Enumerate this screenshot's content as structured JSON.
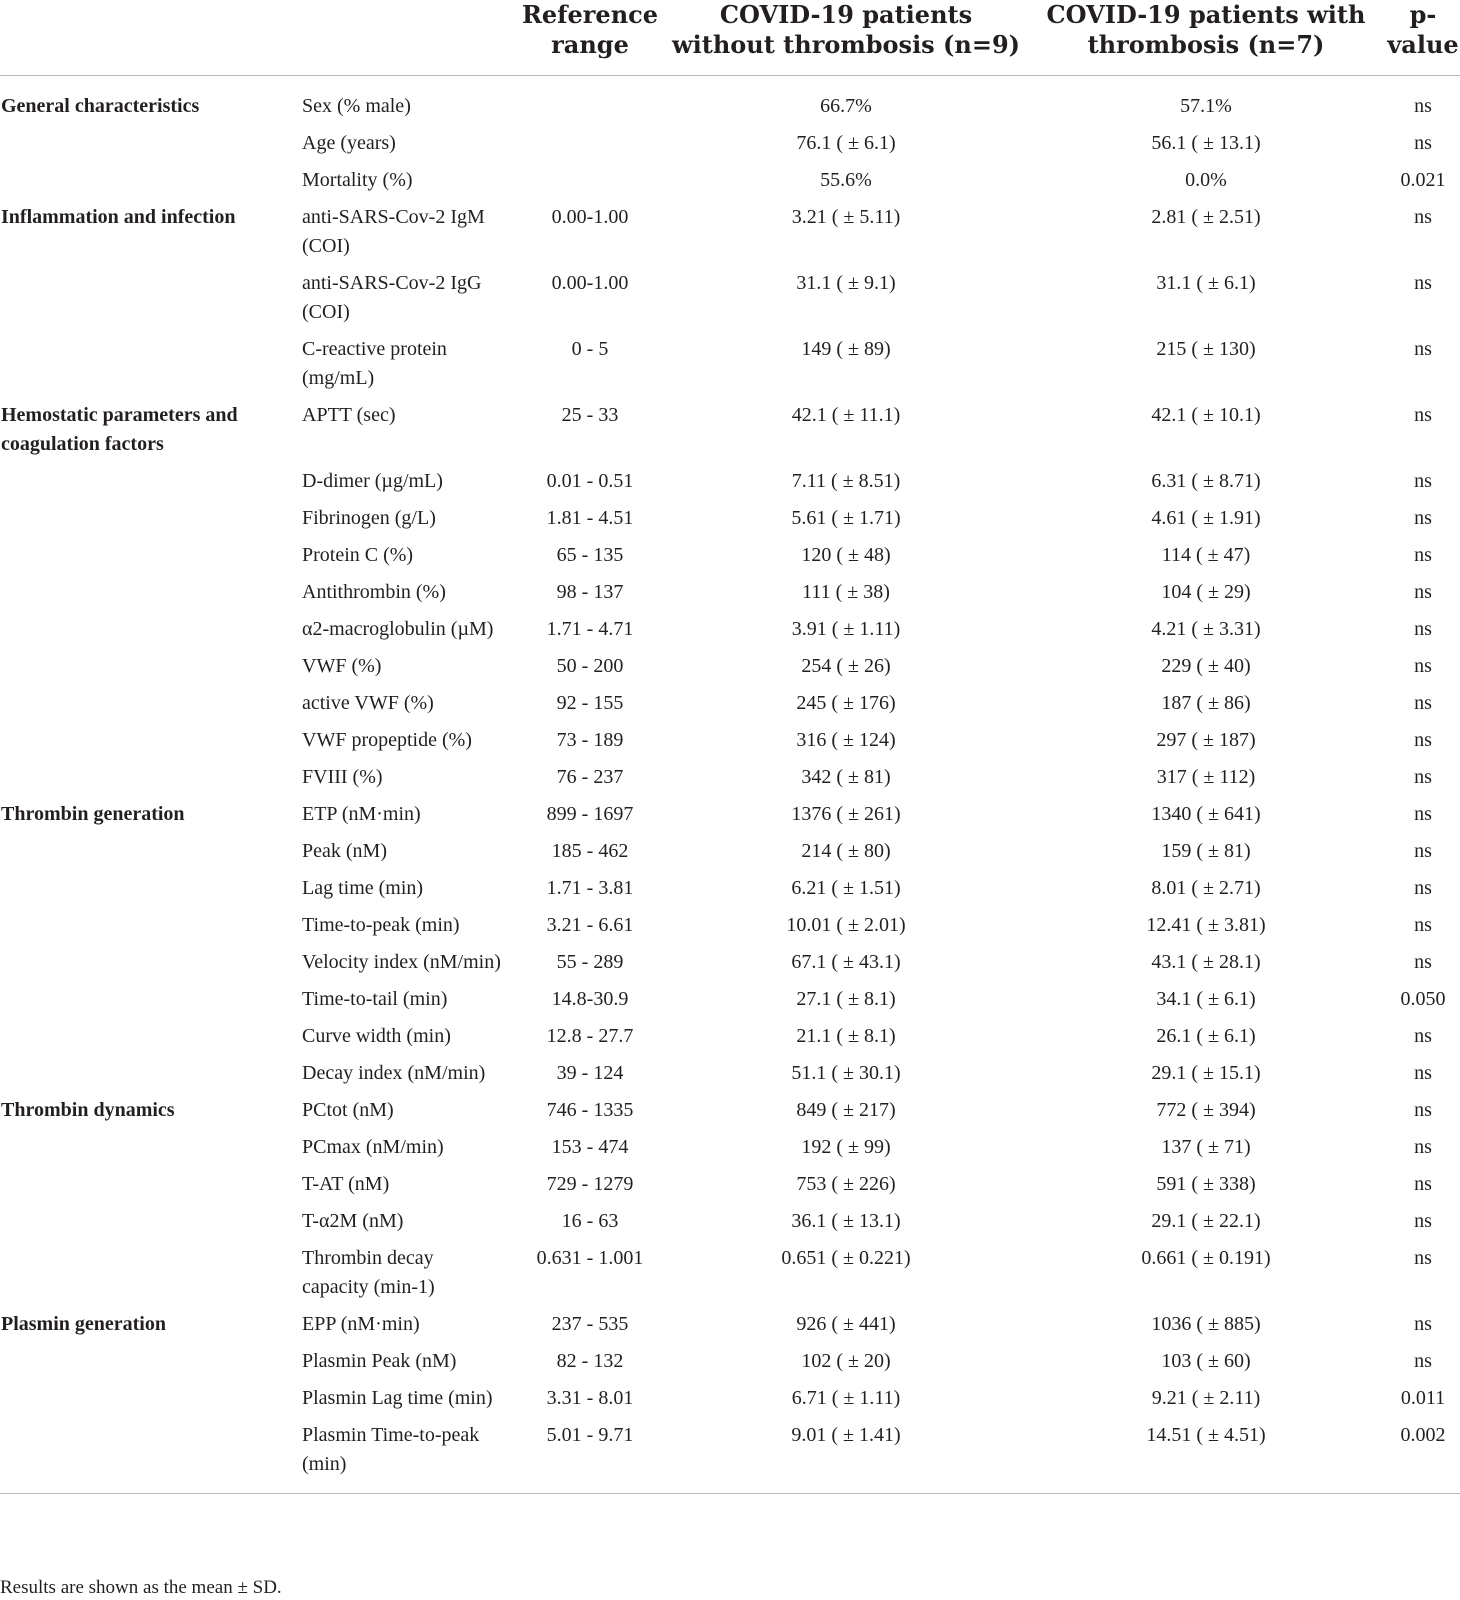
{
  "header": {
    "col_category": "",
    "col_parameter": "",
    "col_reference": "Reference range",
    "col_without": "COVID-19 patients without thrombosis (n=9)",
    "col_with": "COVID-19 patients with thrombosis (n=7)",
    "col_pvalue": "p-value"
  },
  "rows": [
    {
      "category": "General characteristics",
      "parameter": "Sex (% male)",
      "reference": "",
      "without": "66.7%",
      "with": "57.1%",
      "p": "ns"
    },
    {
      "category": "",
      "parameter": "Age (years)",
      "reference": "",
      "without": "76.1 ( ± 6.1)",
      "with": "56.1 ( ± 13.1)",
      "p": "ns"
    },
    {
      "category": "",
      "parameter": "Mortality (%)",
      "reference": "",
      "without": "55.6%",
      "with": "0.0%",
      "p": "0.021"
    },
    {
      "category": "Inflammation and infection",
      "parameter": "anti-SARS-Cov-2 IgM (COI)",
      "reference": "0.00-1.00",
      "without": "3.21 ( ± 5.11)",
      "with": "2.81 ( ± 2.51)",
      "p": "ns"
    },
    {
      "category": "",
      "parameter": "anti-SARS-Cov-2 IgG (COI)",
      "reference": "0.00-1.00",
      "without": "31.1 ( ± 9.1)",
      "with": "31.1 ( ± 6.1)",
      "p": "ns"
    },
    {
      "category": "",
      "parameter": "C-reactive protein (mg/mL)",
      "reference": "0 - 5",
      "without": "149 ( ± 89)",
      "with": "215 ( ± 130)",
      "p": "ns"
    },
    {
      "category": "Hemostatic parameters and coagulation factors",
      "parameter": "APTT (sec)",
      "reference": "25 - 33",
      "without": "42.1 ( ± 11.1)",
      "with": "42.1 ( ± 10.1)",
      "p": "ns"
    },
    {
      "category": "",
      "parameter": "D-dimer (µg/mL)",
      "reference": "0.01 - 0.51",
      "without": "7.11 ( ± 8.51)",
      "with": "6.31 ( ± 8.71)",
      "p": "ns"
    },
    {
      "category": "",
      "parameter": "Fibrinogen (g/L)",
      "reference": "1.81 - 4.51",
      "without": "5.61 ( ± 1.71)",
      "with": "4.61 ( ± 1.91)",
      "p": "ns"
    },
    {
      "category": "",
      "parameter": "Protein C (%)",
      "reference": "65 - 135",
      "without": "120 ( ± 48)",
      "with": "114 ( ± 47)",
      "p": "ns"
    },
    {
      "category": "",
      "parameter": "Antithrombin (%)",
      "reference": "98 - 137",
      "without": "111 ( ± 38)",
      "with": "104 ( ± 29)",
      "p": "ns"
    },
    {
      "category": "",
      "parameter": "α2-macroglobulin (µM)",
      "reference": "1.71 - 4.71",
      "without": "3.91 ( ± 1.11)",
      "with": "4.21 ( ± 3.31)",
      "p": "ns"
    },
    {
      "category": "",
      "parameter": "VWF (%)",
      "reference": "50 - 200",
      "without": "254 ( ± 26)",
      "with": "229 ( ± 40)",
      "p": "ns"
    },
    {
      "category": "",
      "parameter": "active VWF (%)",
      "reference": "92 - 155",
      "without": "245 ( ± 176)",
      "with": "187 ( ± 86)",
      "p": "ns"
    },
    {
      "category": "",
      "parameter": "VWF propeptide (%)",
      "reference": "73 - 189",
      "without": "316 ( ± 124)",
      "with": "297 ( ± 187)",
      "p": "ns"
    },
    {
      "category": "",
      "parameter": "FVIII (%)",
      "reference": "76 - 237",
      "without": "342 ( ± 81)",
      "with": "317 ( ± 112)",
      "p": "ns"
    },
    {
      "category": "Thrombin generation",
      "parameter": "ETP (nM·min)",
      "reference": "899 - 1697",
      "without": "1376 ( ± 261)",
      "with": "1340 ( ± 641)",
      "p": "ns"
    },
    {
      "category": "",
      "parameter": "Peak (nM)",
      "reference": "185 - 462",
      "without": "214 ( ± 80)",
      "with": "159 ( ± 81)",
      "p": "ns"
    },
    {
      "category": "",
      "parameter": "Lag time (min)",
      "reference": "1.71 - 3.81",
      "without": "6.21 ( ± 1.51)",
      "with": "8.01 ( ± 2.71)",
      "p": "ns"
    },
    {
      "category": "",
      "parameter": "Time-to-peak (min)",
      "reference": "3.21 - 6.61",
      "without": "10.01 ( ± 2.01)",
      "with": "12.41 ( ± 3.81)",
      "p": "ns"
    },
    {
      "category": "",
      "parameter": "Velocity index (nM/min)",
      "reference": "55 - 289",
      "without": "67.1 ( ± 43.1)",
      "with": "43.1 ( ± 28.1)",
      "p": "ns"
    },
    {
      "category": "",
      "parameter": "Time-to-tail (min)",
      "reference": "14.8-30.9",
      "without": "27.1 ( ± 8.1)",
      "with": "34.1 ( ± 6.1)",
      "p": "0.050"
    },
    {
      "category": "",
      "parameter": "Curve width (min)",
      "reference": "12.8 - 27.7",
      "without": "21.1 ( ± 8.1)",
      "with": "26.1 ( ± 6.1)",
      "p": "ns"
    },
    {
      "category": "",
      "parameter": "Decay index (nM/min)",
      "reference": "39 - 124",
      "without": "51.1 ( ± 30.1)",
      "with": "29.1 ( ± 15.1)",
      "p": "ns"
    },
    {
      "category": "Thrombin dynamics",
      "parameter": "PCtot (nM)",
      "reference": "746 - 1335",
      "without": "849 ( ± 217)",
      "with": "772 ( ± 394)",
      "p": "ns"
    },
    {
      "category": "",
      "parameter": "PCmax (nM/min)",
      "reference": "153 - 474",
      "without": "192 ( ± 99)",
      "with": "137 ( ± 71)",
      "p": "ns"
    },
    {
      "category": "",
      "parameter": "T-AT (nM)",
      "reference": "729 - 1279",
      "without": "753 ( ± 226)",
      "with": "591 ( ± 338)",
      "p": "ns"
    },
    {
      "category": "",
      "parameter": "T-α2M (nM)",
      "reference": "16 - 63",
      "without": "36.1 ( ± 13.1)",
      "with": "29.1 ( ± 22.1)",
      "p": "ns"
    },
    {
      "category": "",
      "parameter": "Thrombin decay capacity (min-1)",
      "reference": "0.631 - 1.001",
      "without": "0.651 ( ± 0.221)",
      "with": "0.661 ( ± 0.191)",
      "p": "ns"
    },
    {
      "category": "Plasmin generation",
      "parameter": "EPP (nM·min)",
      "reference": "237 - 535",
      "without": "926 ( ± 441)",
      "with": "1036 ( ± 885)",
      "p": "ns"
    },
    {
      "category": "",
      "parameter": "Plasmin Peak (nM)",
      "reference": "82 - 132",
      "without": "102 ( ± 20)",
      "with": "103 ( ± 60)",
      "p": "ns"
    },
    {
      "category": "",
      "parameter": "Plasmin Lag time (min)",
      "reference": "3.31 - 8.01",
      "without": "6.71 ( ± 1.11)",
      "with": "9.21 ( ± 2.11)",
      "p": "0.011"
    },
    {
      "category": "",
      "parameter": "Plasmin Time-to-peak (min)",
      "reference": "5.01 - 9.71",
      "without": "9.01 ( ± 1.41)",
      "with": "14.51 ( ± 4.51)",
      "p": "0.002"
    }
  ],
  "footnote": "Results are shown as the mean ± SD."
}
